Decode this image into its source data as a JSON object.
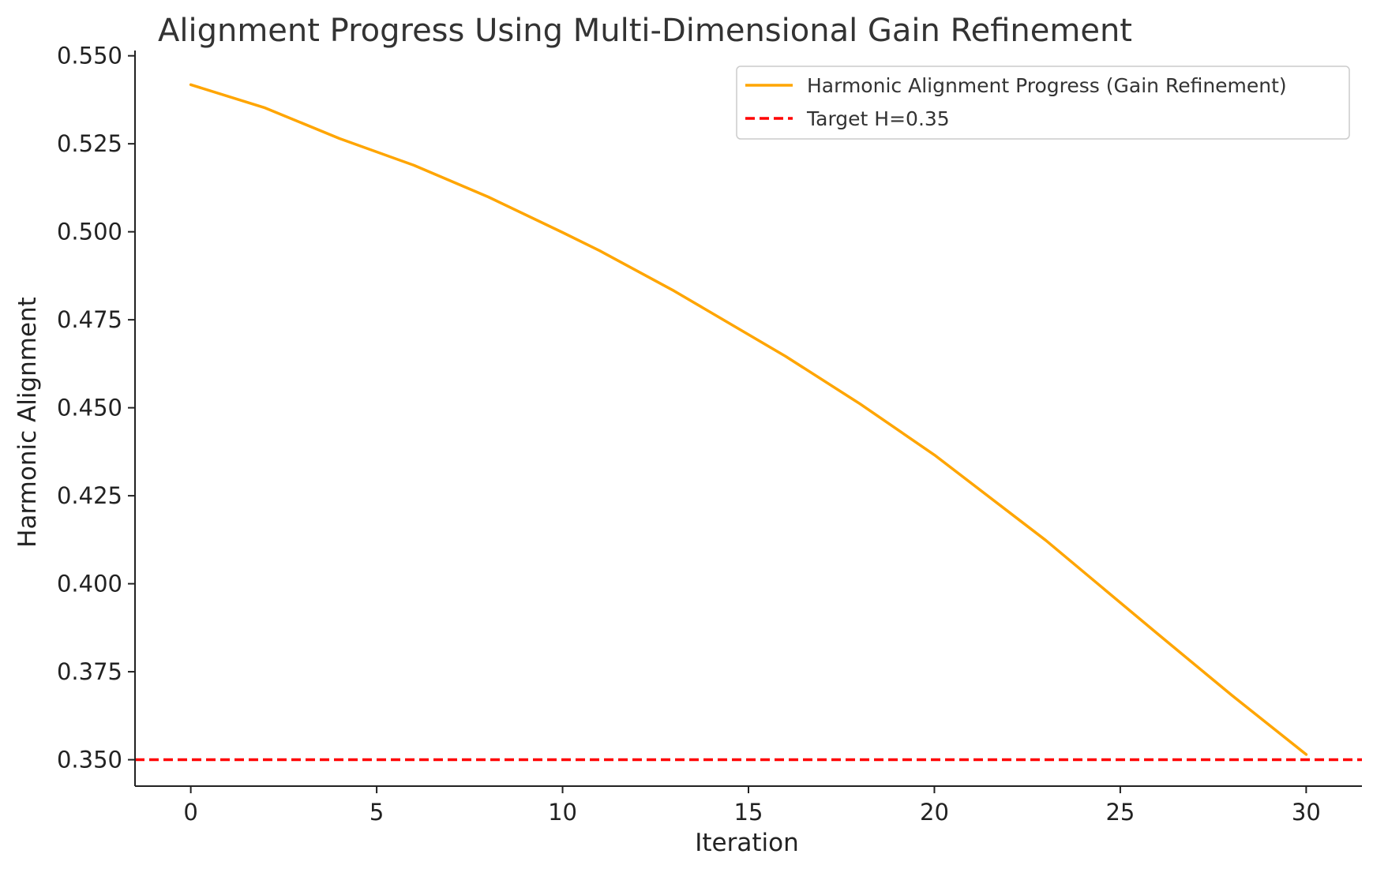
{
  "chart_data": {
    "type": "line",
    "title": "Alignment Progress Using Multi-Dimensional Gain Refinement",
    "xlabel": "Iteration",
    "ylabel": "Harmonic Alignment",
    "xlim": [
      -1.5,
      31.5
    ],
    "ylim": [
      0.3425,
      0.5515
    ],
    "xticks": [
      0,
      5,
      10,
      15,
      20,
      25,
      30
    ],
    "xtick_labels": [
      "0",
      "5",
      "10",
      "15",
      "20",
      "25",
      "30"
    ],
    "yticks": [
      0.35,
      0.375,
      0.4,
      0.425,
      0.45,
      0.475,
      0.5,
      0.525,
      0.55
    ],
    "ytick_labels": [
      "0.350",
      "0.375",
      "0.400",
      "0.425",
      "0.450",
      "0.475",
      "0.500",
      "0.525",
      "0.550"
    ],
    "grid": false,
    "legend_position": "top-right",
    "series": [
      {
        "name": "Harmonic Alignment Progress (Gain Refinement)",
        "color": "#FFA500",
        "style": "solid",
        "x": [
          0,
          2,
          4,
          6,
          8,
          10,
          11,
          13,
          16,
          18,
          20,
          23,
          26,
          28,
          30
        ],
        "y": [
          0.5418,
          0.5352,
          0.5265,
          0.5189,
          0.5099,
          0.4998,
          0.4946,
          0.4832,
          0.4646,
          0.4511,
          0.4366,
          0.4123,
          0.3858,
          0.3683,
          0.3515
        ]
      }
    ],
    "reference_lines": [
      {
        "name": "Target H=0.35",
        "orientation": "horizontal",
        "y": 0.35,
        "color": "#FF0000",
        "style": "dashed"
      }
    ]
  }
}
